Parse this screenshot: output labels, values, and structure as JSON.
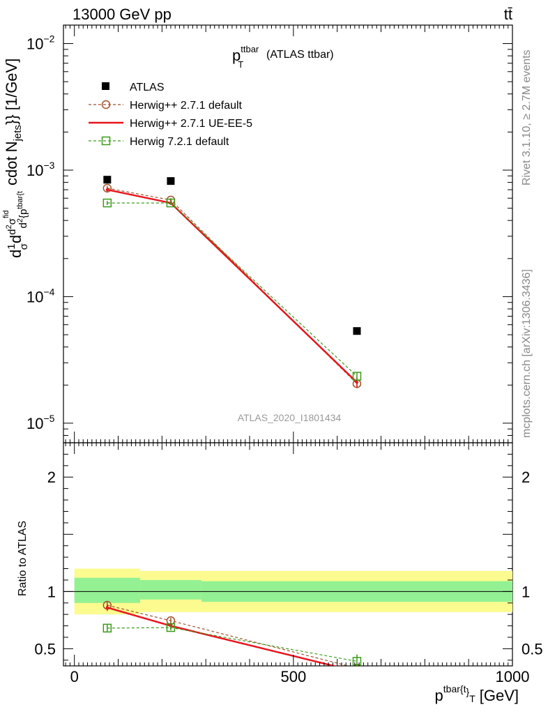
{
  "header": {
    "energy_label": "13000 GeV pp",
    "process_label": "tt̄"
  },
  "side_labels": {
    "rivet": "Rivet 3.1.10, ≥ 2.7M events",
    "mcplots": "mcplots.cern.ch [arXiv:1306.3436]"
  },
  "plot_title": {
    "main": "p",
    "sup": "ttbar",
    "sub": "T",
    "suffix": "(ATLAS ttbar)"
  },
  "analysis_id": "ATLAS_2020_I1801434",
  "legend": [
    {
      "name": "ATLAS",
      "color": "#000000",
      "marker": "square-filled",
      "line": "none"
    },
    {
      "name": "Herwig++ 2.7.1 default",
      "color": "#a0522d",
      "marker": "circle-open",
      "line": "dashed"
    },
    {
      "name": "Herwig++ 2.7.1 UE-EE-5",
      "color": "#e8141c",
      "marker": "none",
      "line": "solid"
    },
    {
      "name": "Herwig 7.2.1 default",
      "color": "#3a9b17",
      "marker": "square-open",
      "line": "dashed"
    }
  ],
  "chart_data": [
    {
      "type": "scatter",
      "panel": "main",
      "ylabel_parts": [
        "d",
        "1",
        "σ",
        "d",
        "d",
        "2",
        "σ",
        "fid",
        "d",
        "2",
        "{p",
        "tbar{t",
        "cdot N",
        "jets",
        "}} [1/GeV]"
      ],
      "y_scale": "log",
      "ylim": [
        7e-06,
        0.014
      ],
      "y_ticks": [
        {
          "value": 1e-05,
          "base": "10",
          "exp": "−5"
        },
        {
          "value": 0.0001,
          "base": "10",
          "exp": "−4"
        },
        {
          "value": 0.001,
          "base": "10",
          "exp": "−3"
        },
        {
          "value": 0.01,
          "base": "10",
          "exp": "−2"
        }
      ],
      "xlim": [
        -25,
        1000
      ],
      "series": [
        {
          "name": "ATLAS",
          "x": [
            75,
            220,
            645
          ],
          "y": [
            0.00084,
            0.00082,
            5.35e-05
          ]
        },
        {
          "name": "Herwig++ 2.7.1 default",
          "x": [
            75,
            220,
            645
          ],
          "y": [
            0.00072,
            0.00058,
            2.05e-05
          ],
          "err": [
            3e-05,
            2e-05,
            1.5e-06
          ]
        },
        {
          "name": "Herwig++ 2.7.1 UE-EE-5",
          "x": [
            75,
            220,
            645
          ],
          "y": [
            0.0007,
            0.00055,
            2.1e-05
          ],
          "err": [
            3e-05,
            2e-05,
            2e-06
          ]
        },
        {
          "name": "Herwig 7.2.1 default",
          "x": [
            75,
            220,
            645
          ],
          "y": [
            0.00055,
            0.00055,
            2.35e-05
          ],
          "err": [
            2e-05,
            2e-05,
            1.5e-06
          ]
        }
      ]
    },
    {
      "type": "line",
      "panel": "ratio",
      "ylabel": "Ratio to ATLAS",
      "ylim": [
        0.35,
        2.3
      ],
      "y_ticks": [
        {
          "value": 0.5,
          "label": "0.5"
        },
        {
          "value": 1,
          "label": "1"
        },
        {
          "value": 2,
          "label": "2"
        }
      ],
      "xlim": [
        -25,
        1000
      ],
      "x_ticks": [
        {
          "value": 0,
          "label": "0"
        },
        {
          "value": 500,
          "label": "500"
        },
        {
          "value": 1000,
          "label": "1000"
        }
      ],
      "xlabel_parts": [
        "p",
        "tbar{t",
        "}",
        "T",
        "[GeV]"
      ],
      "bands": [
        {
          "x0": 0,
          "x1": 150,
          "yellow": [
            0.8,
            1.2
          ],
          "green": [
            0.9,
            1.12
          ]
        },
        {
          "x0": 150,
          "x1": 290,
          "yellow": [
            0.82,
            1.18
          ],
          "green": [
            0.93,
            1.1
          ]
        },
        {
          "x0": 290,
          "x1": 1000,
          "yellow": [
            0.82,
            1.18
          ],
          "green": [
            0.91,
            1.09
          ]
        }
      ],
      "series": [
        {
          "name": "Herwig++ 2.7.1 default",
          "x": [
            75,
            220,
            645
          ],
          "y": [
            0.88,
            0.745,
            0.33
          ],
          "err": [
            0.03,
            0.025,
            0.03
          ]
        },
        {
          "name": "Herwig++ 2.7.1 UE-EE-5",
          "x": [
            75,
            220,
            645
          ],
          "y": [
            0.86,
            0.7,
            0.3
          ],
          "err": [
            0.03,
            0.025,
            0.03
          ]
        },
        {
          "name": "Herwig 7.2.1 default",
          "x": [
            75,
            220,
            645
          ],
          "y": [
            0.68,
            0.685,
            0.39
          ],
          "err": [
            0.03,
            0.025,
            0.06
          ]
        }
      ]
    }
  ]
}
